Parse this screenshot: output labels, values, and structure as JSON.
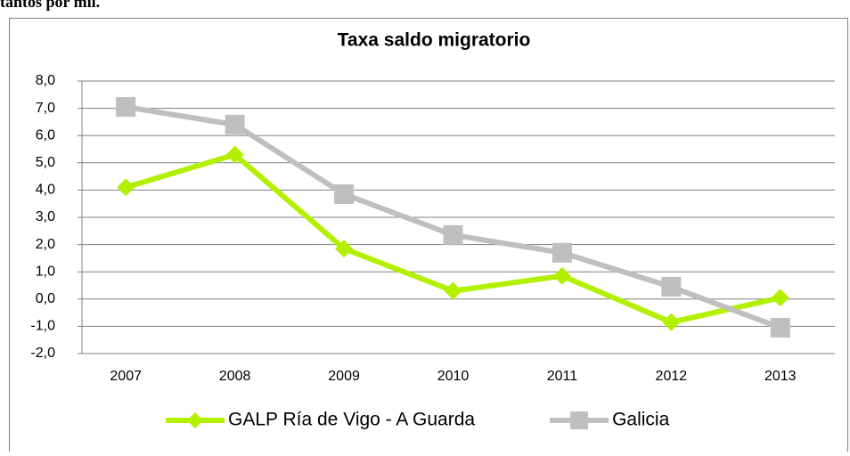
{
  "caption": "tantos por mil.",
  "chart_data": {
    "type": "line",
    "title": "Taxa saldo migratorio",
    "categories": [
      "2007",
      "2008",
      "2009",
      "2010",
      "2011",
      "2012",
      "2013"
    ],
    "series": [
      {
        "name": "GALP Ría de Vigo - A Guarda",
        "color": "#b2f000",
        "marker": "diamond",
        "values": [
          4.1,
          5.3,
          1.85,
          0.3,
          0.85,
          -0.85,
          0.05
        ]
      },
      {
        "name": "Galicia",
        "color": "#bfbfbf",
        "marker": "square",
        "values": [
          7.05,
          6.4,
          3.85,
          2.35,
          1.7,
          0.45,
          -1.05
        ]
      }
    ],
    "ylim": [
      -2,
      8
    ],
    "yticks": [
      {
        "value": -2,
        "label": "-2,0"
      },
      {
        "value": -1,
        "label": "-1,0"
      },
      {
        "value": 0,
        "label": "0,0"
      },
      {
        "value": 1,
        "label": "1,0"
      },
      {
        "value": 2,
        "label": "2,0"
      },
      {
        "value": 3,
        "label": "3,0"
      },
      {
        "value": 4,
        "label": "4,0"
      },
      {
        "value": 5,
        "label": "5,0"
      },
      {
        "value": 6,
        "label": "6,0"
      },
      {
        "value": 7,
        "label": "7,0"
      },
      {
        "value": 8,
        "label": "8,0"
      }
    ],
    "grid": true,
    "legend": "bottom"
  }
}
